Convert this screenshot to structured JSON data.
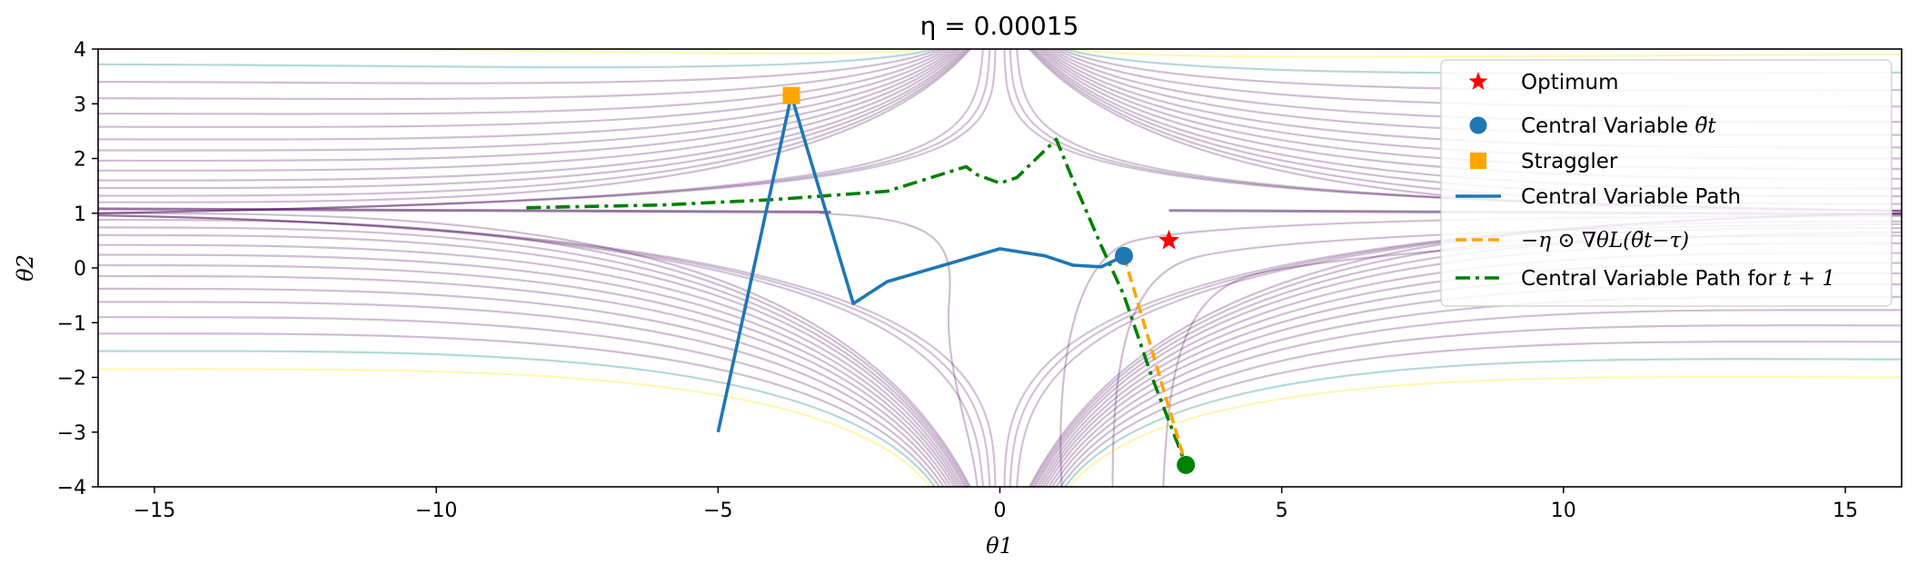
{
  "chart_data": {
    "type": "line",
    "title": "η = 0.00015",
    "xlabel": "θ1",
    "ylabel": "θ2",
    "xlim": [
      -16,
      16
    ],
    "ylim": [
      -4,
      4
    ],
    "x_ticks": [
      -15,
      -10,
      -5,
      0,
      5,
      10,
      15
    ],
    "y_ticks": [
      -4,
      -3,
      -2,
      -1,
      0,
      1,
      2,
      3,
      4
    ],
    "x_tick_labels": [
      "−15",
      "−10",
      "−5",
      "0",
      "5",
      "10",
      "15"
    ],
    "y_tick_labels": [
      "−4",
      "−3",
      "−2",
      "−1",
      "0",
      "1",
      "2",
      "3",
      "4"
    ],
    "grid": false,
    "legend_position": "top-right",
    "background": "contour plot of the loss surface with a saddle near the origin (purple / teal / yellow level curves)",
    "colors": {
      "optimum": "#ff0000",
      "central_variable": "#1f77b4",
      "straggler": "#ffa500",
      "gradient_step": "#ffa500",
      "path_t_plus_1": "#008000",
      "contour_low": "#440154",
      "contour_mid": "#21918c",
      "contour_high": "#fde725"
    },
    "points": {
      "optimum": {
        "x": 3.0,
        "y": 0.5,
        "marker": "star"
      },
      "central_variable": {
        "x": 2.2,
        "y": 0.22,
        "marker": "circle"
      },
      "straggler": {
        "x": -3.7,
        "y": 3.15,
        "marker": "square"
      },
      "next_central_variable": {
        "x": 3.3,
        "y": -3.6,
        "marker": "circle"
      }
    },
    "series": [
      {
        "name": "Central Variable Path",
        "style": "solid",
        "x": [
          -5.0,
          -3.7,
          -2.6,
          -2.0,
          -1.0,
          0.0,
          0.8,
          1.3,
          1.8,
          2.2
        ],
        "y": [
          -3.0,
          3.15,
          -0.65,
          -0.25,
          0.05,
          0.35,
          0.22,
          0.05,
          0.02,
          0.22
        ]
      },
      {
        "name": "−η ⊙ ∇θL(θ̃t−τ)",
        "style": "dashed",
        "x": [
          2.2,
          3.3
        ],
        "y": [
          0.22,
          -3.6
        ]
      },
      {
        "name": "Central Variable Path for t+1",
        "style": "dashdot",
        "x": [
          -8.4,
          -6.0,
          -4.0,
          -2.0,
          -0.6,
          -0.4,
          0.0,
          0.3,
          0.7,
          1.0,
          1.3,
          1.8,
          2.2,
          2.7,
          3.3
        ],
        "y": [
          1.1,
          1.15,
          1.25,
          1.4,
          1.85,
          1.7,
          1.55,
          1.65,
          2.05,
          2.35,
          1.6,
          0.4,
          -0.5,
          -2.0,
          -3.6
        ]
      }
    ],
    "legend": [
      {
        "label": "Optimum",
        "math": ""
      },
      {
        "label": "Central Variable ",
        "math": "θ̃t"
      },
      {
        "label": "Straggler",
        "math": ""
      },
      {
        "label": "Central Variable Path",
        "math": ""
      },
      {
        "label": "",
        "math": "−η ⊙ ∇θL(θ̃t−τ)"
      },
      {
        "label": "Central Variable Path for ",
        "math": "t + 1"
      }
    ]
  }
}
